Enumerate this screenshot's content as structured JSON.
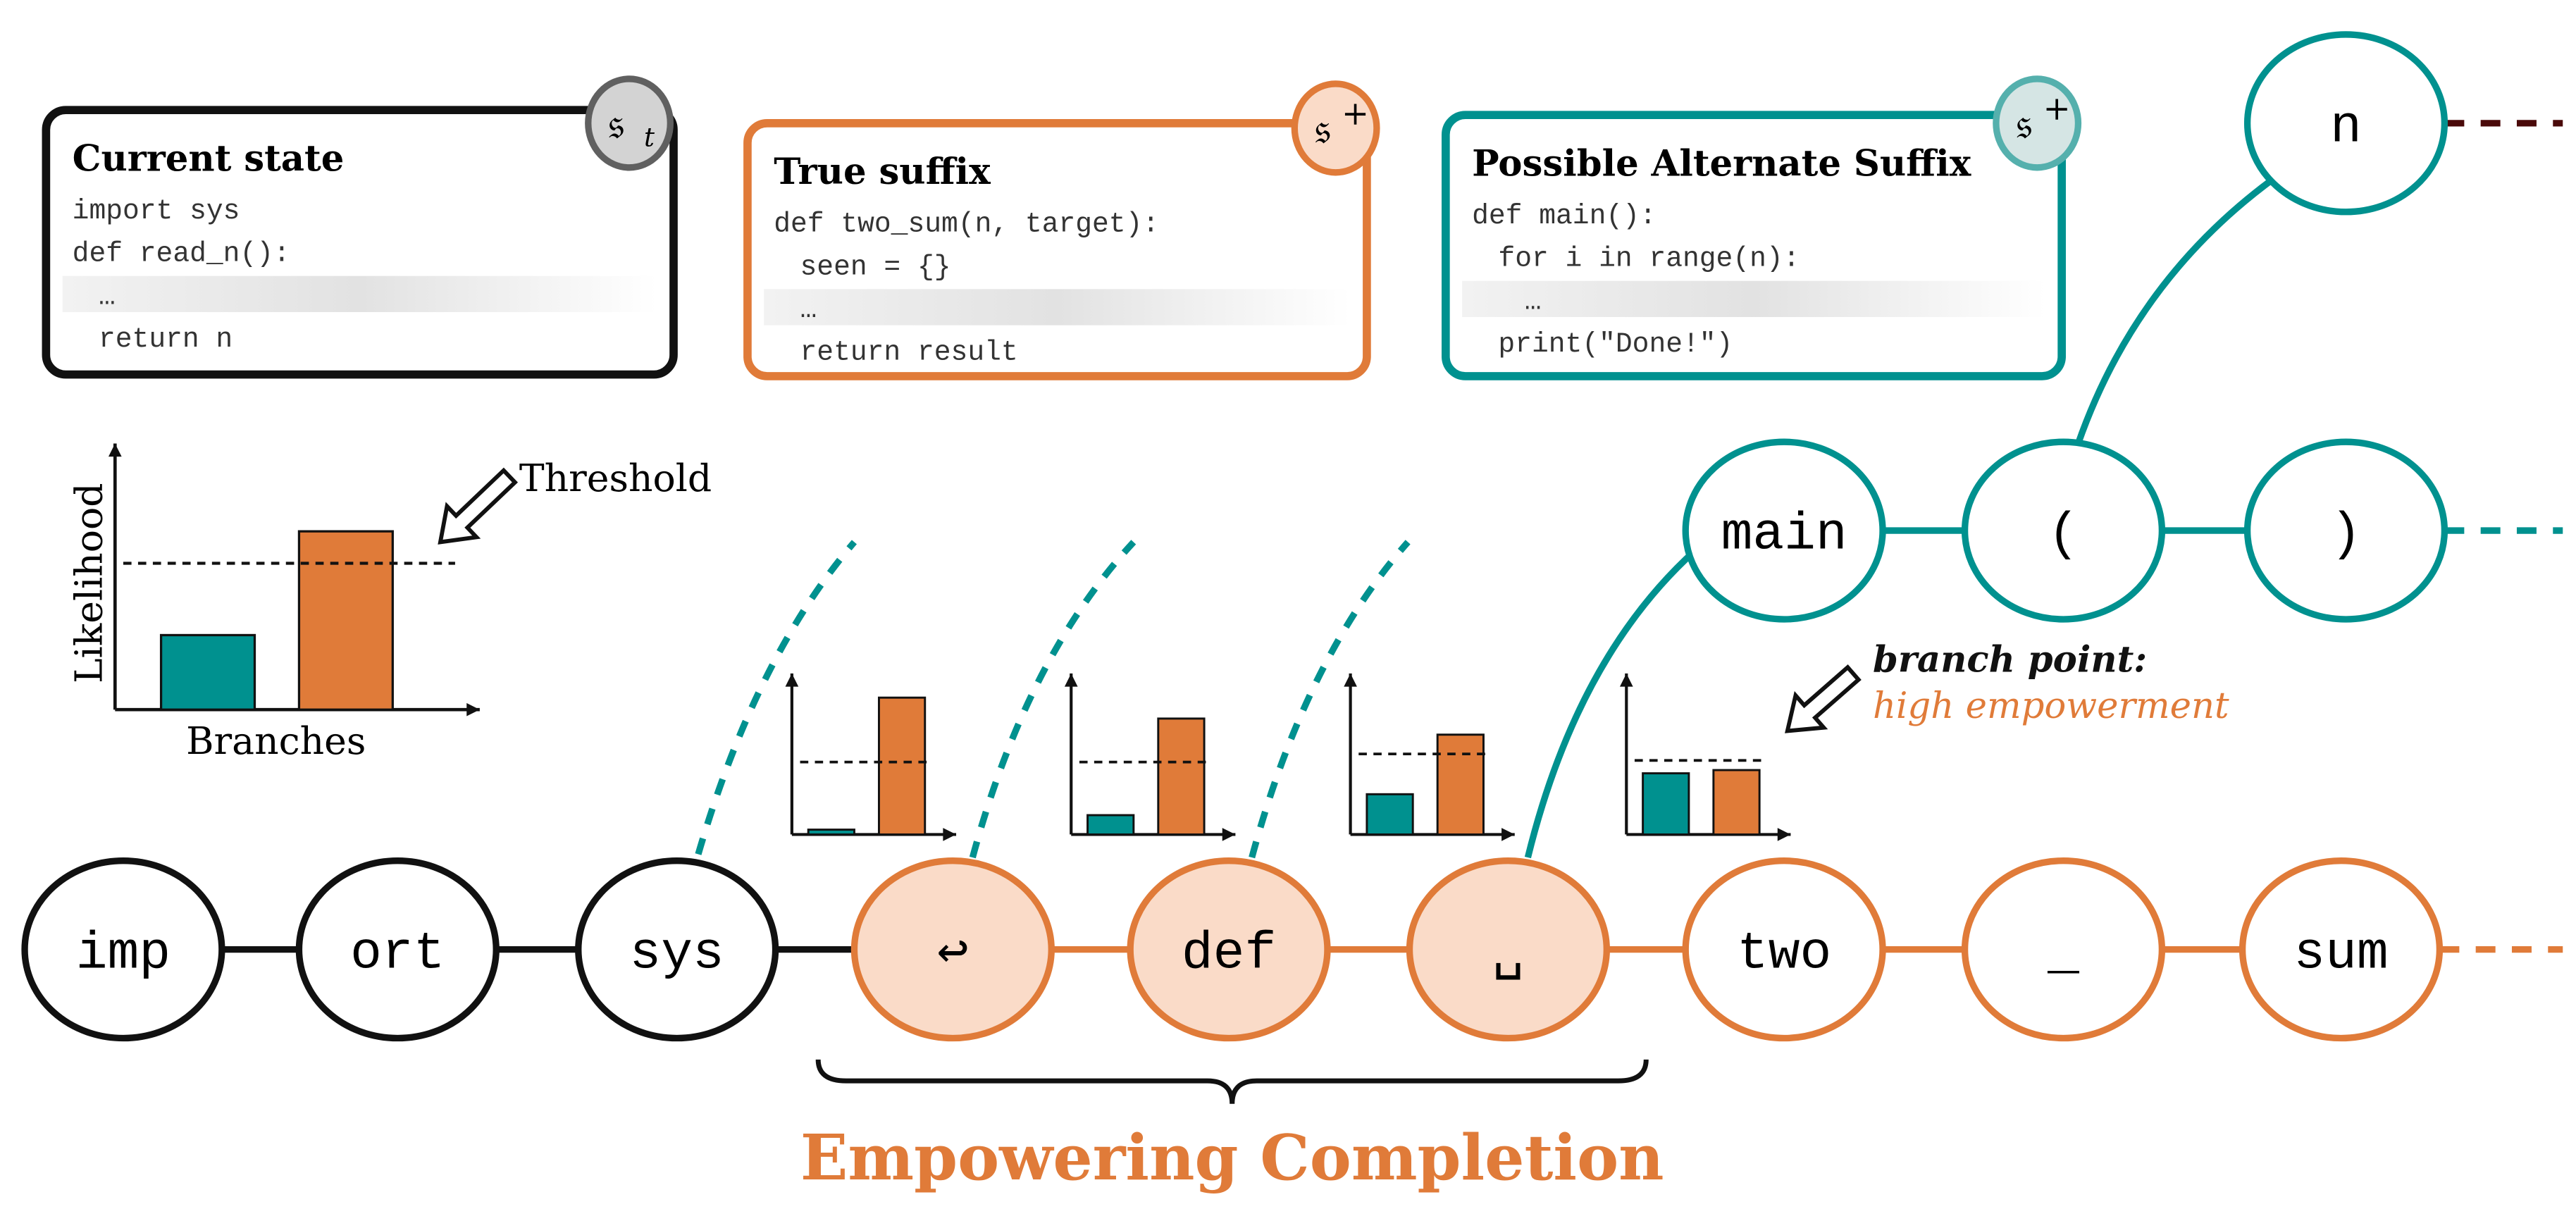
{
  "colors": {
    "teal": "#00918f",
    "orange": "#e07b39",
    "orange_fill": "#fadbc8",
    "black": "#111111",
    "dark_red": "#4a0a0a",
    "badge_gray": "#d3d3d3",
    "badge_teal": "#d5e5e4"
  },
  "boxes": [
    {
      "title": "Current state",
      "badge": "𝔰",
      "badge_sub": "t",
      "lines": [
        "import sys",
        "def read_n():",
        "  …",
        "  return n"
      ],
      "faded_line": 2
    },
    {
      "title": "True suffix",
      "badge": "𝔰",
      "badge_sup": "+",
      "lines": [
        "def two_sum(n, target):",
        "  seen = {}",
        "  …",
        "  return result"
      ],
      "faded_line": 2
    },
    {
      "title": "Possible Alternate Suffix",
      "badge": "𝔰",
      "badge_sup": "+",
      "lines": [
        "def main():",
        "  for i  in range(n):",
        "    …",
        "  print(\"Done!\")"
      ],
      "faded_line": 2
    }
  ],
  "tokens": {
    "main_row": [
      "imp",
      "ort",
      "sys",
      "↩",
      "def",
      "␣",
      "two",
      "_",
      "sum"
    ],
    "branch_row": [
      "main",
      "(",
      ")"
    ],
    "top_row": [
      "n"
    ]
  },
  "main_chart": {
    "ylabel": "Likelihood",
    "xlabel": "Branches",
    "threshold_label": "Threshold",
    "values": [
      0.28,
      0.67
    ],
    "threshold": 0.55
  },
  "small_charts": [
    {
      "values": [
        0.03,
        0.85
      ],
      "threshold": 0.45
    },
    {
      "values": [
        0.12,
        0.72
      ],
      "threshold": 0.45
    },
    {
      "values": [
        0.25,
        0.62
      ],
      "threshold": 0.5
    },
    {
      "values": [
        0.38,
        0.4
      ],
      "threshold": 0.46
    }
  ],
  "annotation": {
    "line1": "branch point:",
    "line2": "high empowerment"
  },
  "caption": "Empowering Completion"
}
